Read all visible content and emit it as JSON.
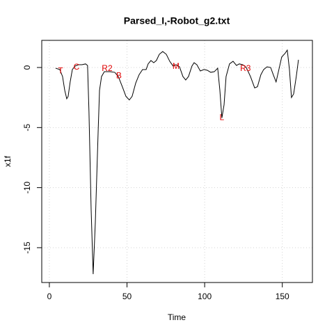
{
  "chart_data": {
    "type": "line",
    "title": "Parsed_I,-Robot_g2.txt",
    "xlabel": "Time",
    "ylabel": "x1f",
    "color": "#000000",
    "grid": true,
    "xlim": [
      -4.9,
      169.4
    ],
    "ylim": [
      -17.9,
      2.26
    ],
    "xticks": [
      0,
      50,
      100,
      150
    ],
    "yticks": [
      0,
      -5,
      -10,
      -15
    ],
    "x": [
      4,
      6.7,
      8.5,
      9.9,
      11.2,
      12.1,
      13.4,
      14.8,
      16.6,
      18.8,
      21,
      23.3,
      24.6,
      25.5,
      26.9,
      28.2,
      29.6,
      31.4,
      32.3,
      33.6,
      35.4,
      39,
      42.1,
      44.4,
      47,
      49.3,
      51.5,
      53.3,
      55.6,
      57.8,
      60,
      62.3,
      63.6,
      65.4,
      67.2,
      68.9,
      70.8,
      73,
      75.3,
      77.5,
      79.7,
      81.5,
      83.8,
      86,
      87.8,
      89.6,
      91.8,
      93.2,
      95,
      97.2,
      99.6,
      101.7,
      103.9,
      106.2,
      108.4,
      109.8,
      111.1,
      112.5,
      113.8,
      116,
      118.3,
      120.5,
      122.3,
      124.6,
      126.8,
      129.5,
      132.2,
      134,
      136.2,
      138,
      140.2,
      142.5,
      144.3,
      146,
      147.8,
      149.6,
      151.9,
      153.2,
      154.6,
      155.9,
      157.3,
      159,
      160.4
    ],
    "values": [
      -0.06,
      -0.17,
      -0.75,
      -1.9,
      -2.6,
      -2.4,
      -1.2,
      -0.17,
      0.12,
      0.23,
      0.23,
      0.3,
      0.17,
      -3.65,
      -11.8,
      -17.2,
      -12.9,
      -5.4,
      -1.9,
      -0.75,
      -0.35,
      -0.35,
      -0.4,
      -0.75,
      -1.6,
      -2.4,
      -2.7,
      -2.4,
      -1.3,
      -0.6,
      -0.17,
      -0.17,
      0.3,
      0.58,
      0.4,
      0.58,
      1.1,
      1.33,
      1.1,
      0.52,
      0.12,
      0.23,
      0.06,
      -0.75,
      -1.04,
      -0.75,
      0.12,
      0.4,
      0.23,
      -0.29,
      -0.17,
      -0.23,
      -0.4,
      -0.35,
      -0.06,
      -1.9,
      -4.2,
      -3.1,
      -0.75,
      0.3,
      0.52,
      0.17,
      0.3,
      0.23,
      0,
      -0.75,
      -1.7,
      -1.6,
      -0.6,
      -0.17,
      0.06,
      0,
      -0.64,
      -1.2,
      -0.17,
      0.87,
      1.2,
      1.45,
      -0.17,
      -2.5,
      -2.2,
      -0.75,
      0.64
    ],
    "annotations": [
      {
        "text": "T",
        "x": 7.2,
        "y": -0.3
      },
      {
        "text": "C",
        "x": 17.5,
        "y": 0
      },
      {
        "text": "R2",
        "x": 37.2,
        "y": -0.1
      },
      {
        "text": "B",
        "x": 44.8,
        "y": -0.7
      },
      {
        "text": "M",
        "x": 81.5,
        "y": 0.06
      },
      {
        "text": "L",
        "x": 111.1,
        "y": -4.2
      },
      {
        "text": "R3",
        "x": 126.3,
        "y": -0.1
      }
    ],
    "annotation_color": "#e00000"
  }
}
